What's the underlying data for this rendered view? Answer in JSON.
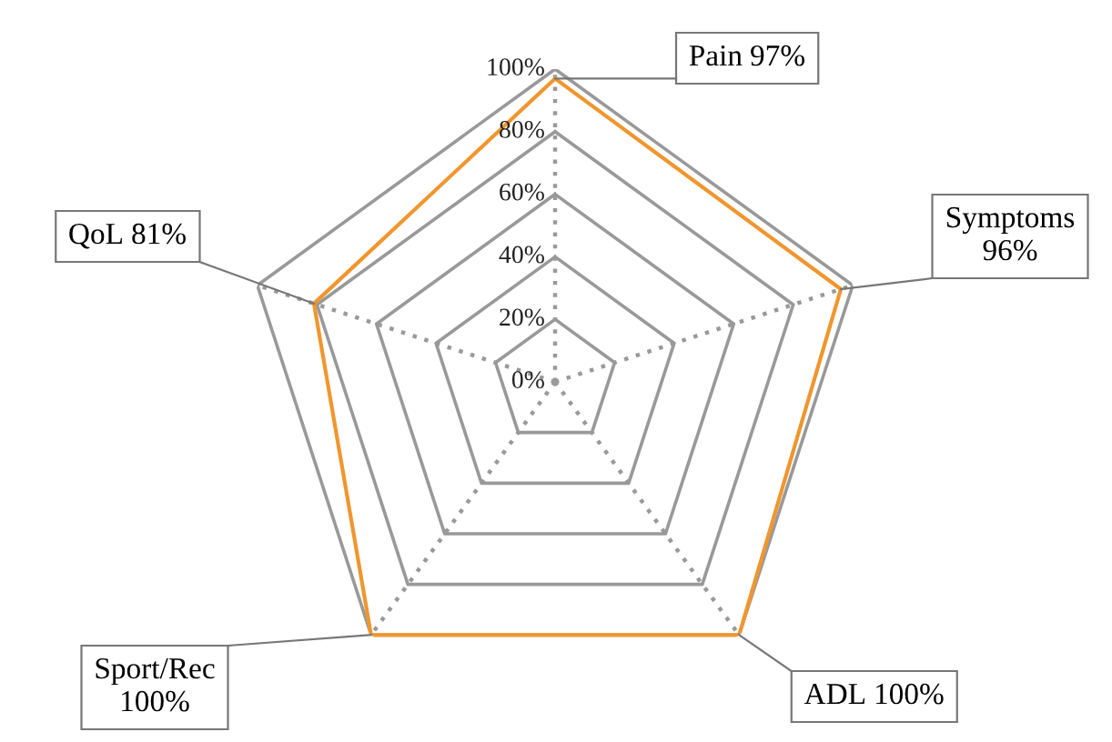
{
  "chart_data": {
    "type": "radar",
    "categories": [
      "Pain",
      "Symptoms",
      "ADL",
      "Sport/Rec",
      "QoL"
    ],
    "series": [
      {
        "color": "#f0962e",
        "values": [
          97,
          96,
          100,
          100,
          81
        ]
      }
    ],
    "annotations": [
      "97%",
      "96%",
      "100%",
      "100%",
      "81%"
    ],
    "ylim": [
      0,
      100
    ],
    "yticks": [
      {
        "value": 0,
        "label": "0%"
      },
      {
        "value": 20,
        "label": "20%"
      },
      {
        "value": 40,
        "label": "40%"
      },
      {
        "value": 60,
        "label": "60%"
      },
      {
        "value": 80,
        "label": "80%"
      },
      {
        "value": 100,
        "label": "100%"
      }
    ],
    "grid": true,
    "marker": "none",
    "line_style": "solid"
  }
}
